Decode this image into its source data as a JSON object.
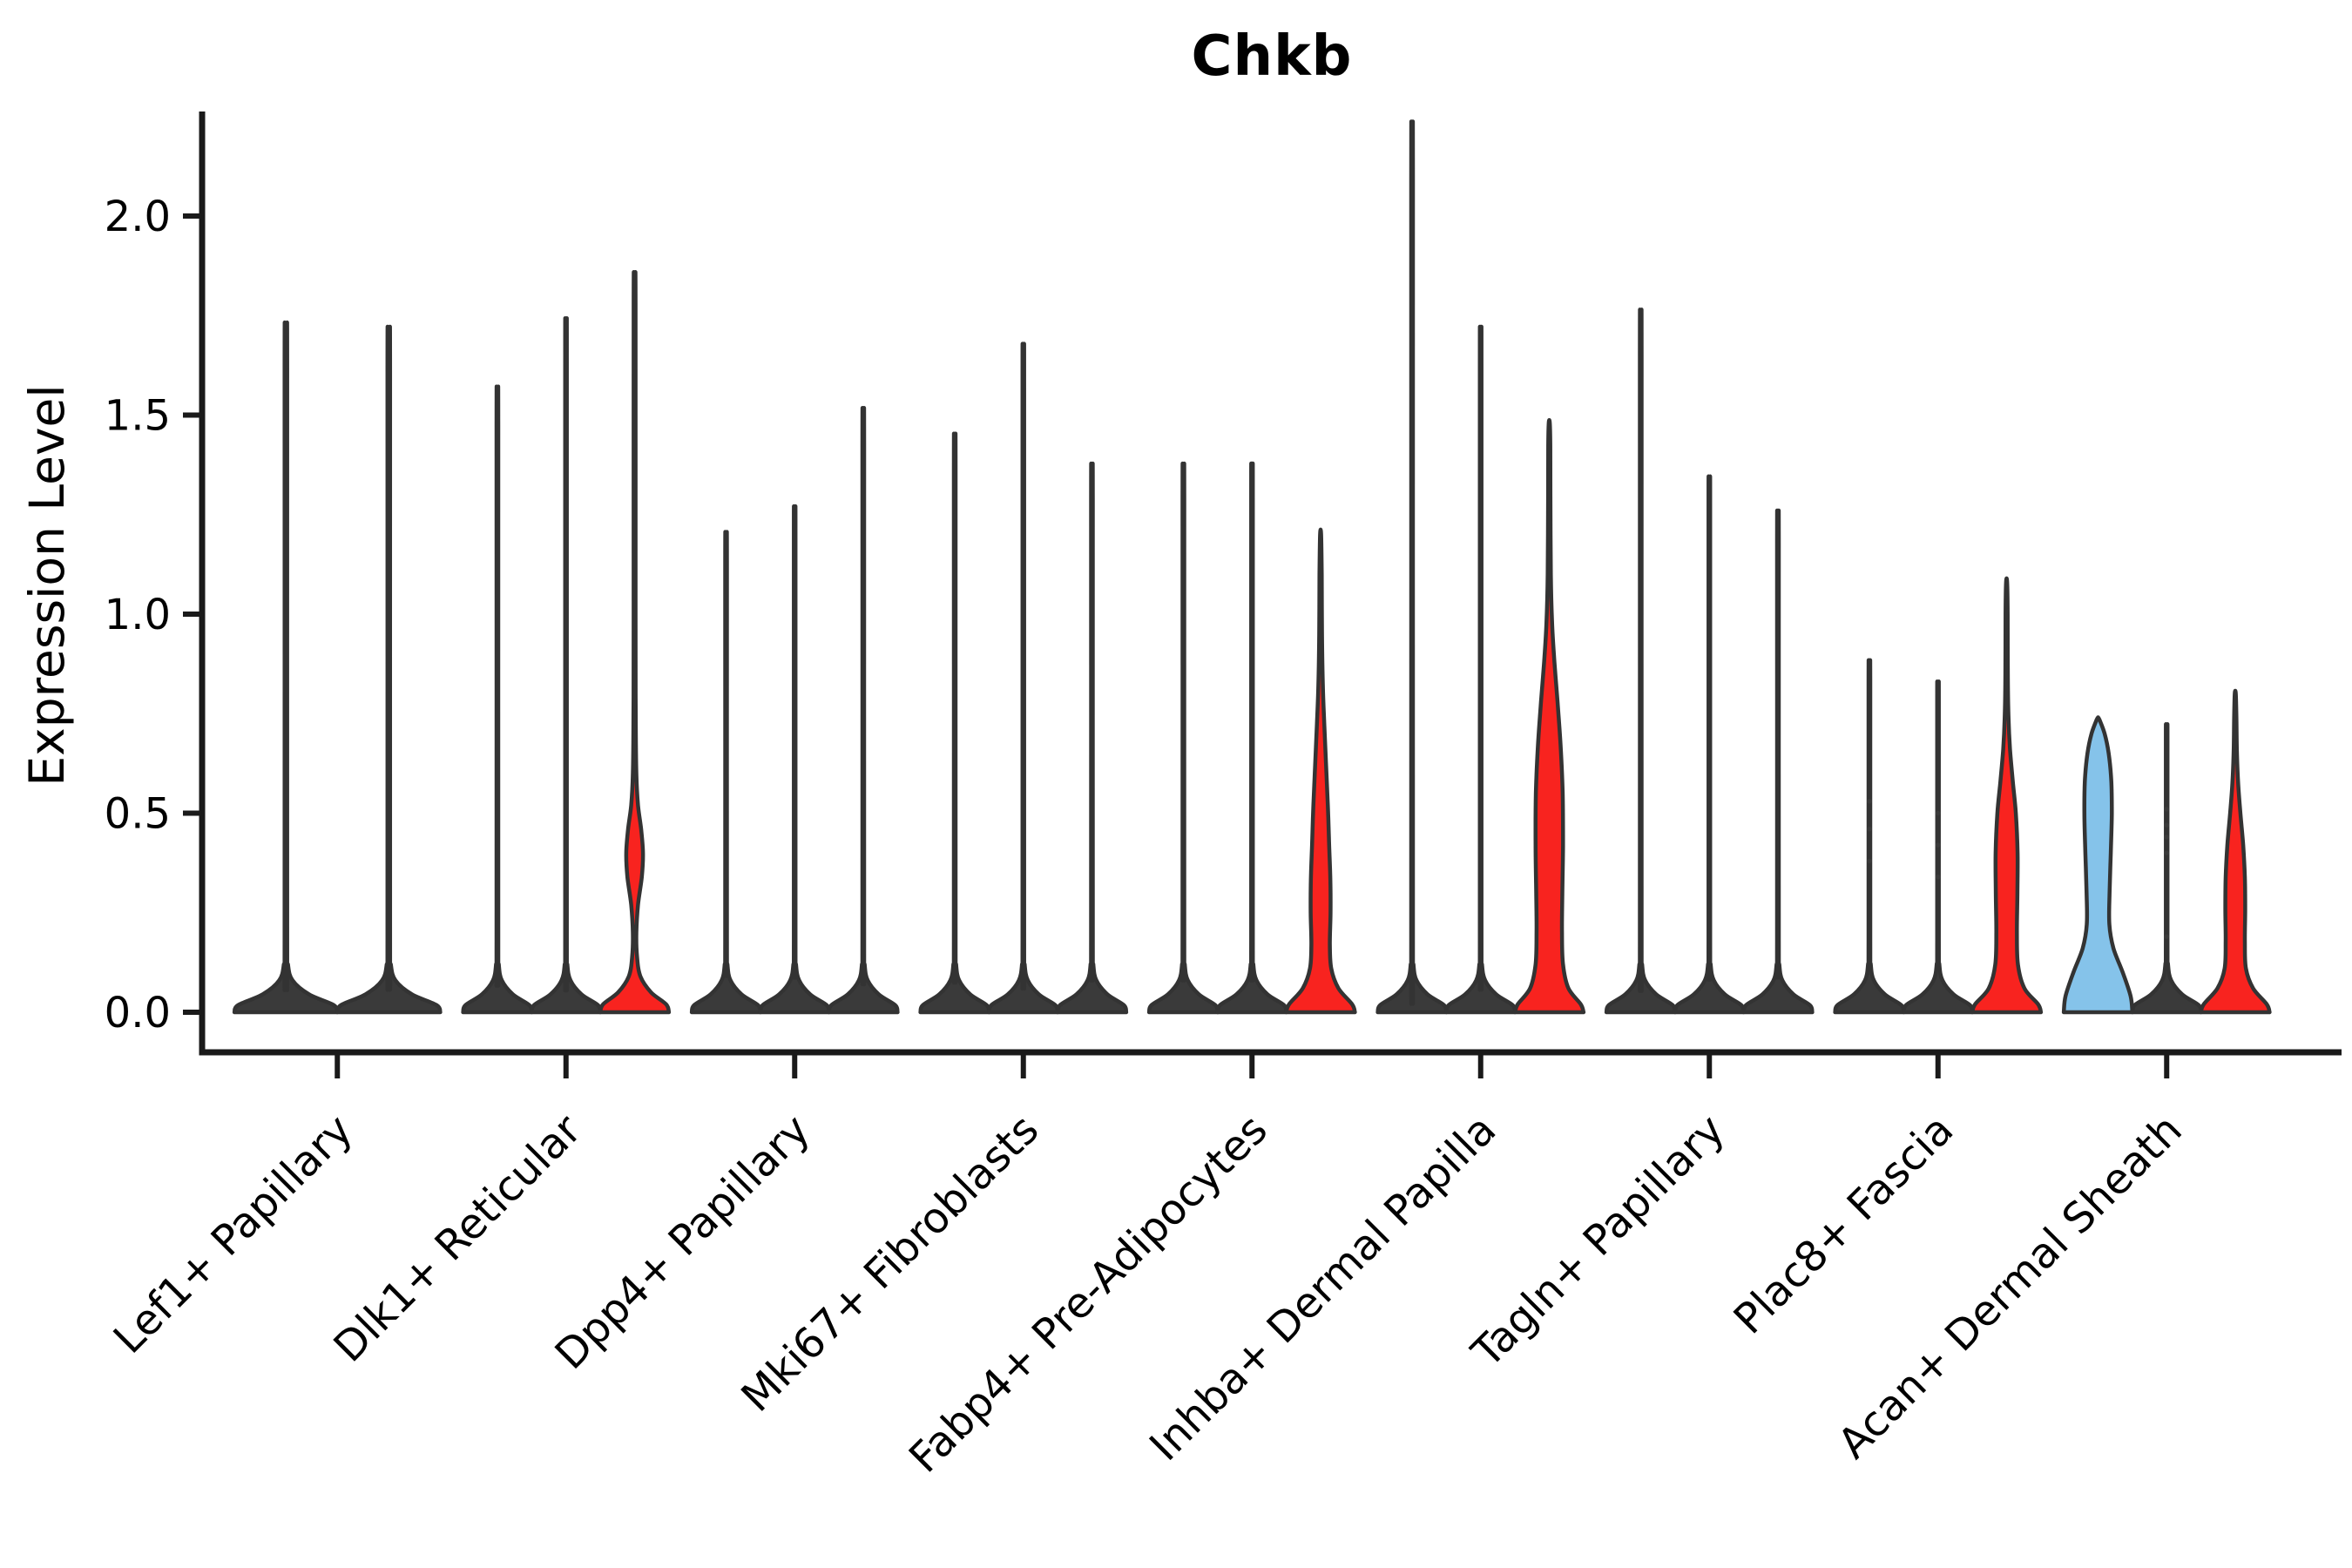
{
  "title": "Chkb",
  "y_axis_title": "Expression Level",
  "chart_data": {
    "type": "violin",
    "title": "Chkb",
    "xlabel": "",
    "ylabel": "Expression Level",
    "ylim": [
      0,
      2.26
    ],
    "grid": false,
    "legend": "none",
    "x_tick_rotation_deg": 45,
    "yticks": [
      {
        "value": 0.0,
        "label": "0.0"
      },
      {
        "value": 0.5,
        "label": "0.5"
      },
      {
        "value": 1.0,
        "label": "1.0"
      },
      {
        "value": 1.5,
        "label": "1.5"
      },
      {
        "value": 2.0,
        "label": "2.0"
      }
    ],
    "colors": {
      "red": "#F8231F",
      "blue": "#85C3EA",
      "dark": "#3A3A3A",
      "outline": "#333333",
      "axis": "#1A1A1A",
      "text": "#000000"
    },
    "categories": [
      "Lef1+ Papillary",
      "Dlk1+ Reticular",
      "Dpp4+ Papillary",
      "Mki67+ Fibroblasts",
      "Fabp4+ Pre-Adipocytes",
      "Inhba+ Dermal Papilla",
      "Tagln+ Papillary",
      "Plac8+ Fascia",
      "Acan+ Dermal Sheath"
    ],
    "groups": [
      {
        "violins": [
          {
            "max": 1.64,
            "color": "dark",
            "shape": "spike"
          },
          {
            "max": 1.63,
            "color": "dark",
            "shape": "spike"
          }
        ]
      },
      {
        "violins": [
          {
            "max": 1.49,
            "color": "dark",
            "shape": "spike"
          },
          {
            "max": 1.65,
            "color": "dark",
            "shape": "spike"
          },
          {
            "max": 1.84,
            "color": "red",
            "shape": "profile",
            "profile": [
              [
                0,
                1
              ],
              [
                0.02,
                0.92
              ],
              [
                0.05,
                0.48
              ],
              [
                0.09,
                0.17
              ],
              [
                0.14,
                0.07
              ],
              [
                0.2,
                0.05
              ],
              [
                0.27,
                0.1
              ],
              [
                0.34,
                0.21
              ],
              [
                0.4,
                0.245
              ],
              [
                0.46,
                0.19
              ],
              [
                0.52,
                0.1
              ],
              [
                0.6,
                0.05
              ],
              [
                0.75,
                0.032
              ],
              [
                1.0,
                0.028
              ],
              [
                1.78,
                0.028
              ],
              [
                1.84,
                0.015
              ]
            ]
          }
        ]
      },
      {
        "violins": [
          {
            "max": 1.15,
            "color": "dark",
            "shape": "spike"
          },
          {
            "max": 1.21,
            "color": "dark",
            "shape": "spike"
          },
          {
            "max": 1.44,
            "color": "dark",
            "shape": "spike"
          }
        ]
      },
      {
        "violins": [
          {
            "max": 1.38,
            "color": "dark",
            "shape": "spike"
          },
          {
            "max": 1.59,
            "color": "dark",
            "shape": "spike"
          },
          {
            "max": 1.31,
            "color": "dark",
            "shape": "spike"
          }
        ]
      },
      {
        "violins": [
          {
            "max": 1.31,
            "color": "dark",
            "shape": "spike"
          },
          {
            "max": 1.31,
            "color": "dark",
            "shape": "spike"
          },
          {
            "max": 1.2,
            "color": "red",
            "shape": "profile",
            "profile": [
              [
                0,
                1
              ],
              [
                0.02,
                0.92
              ],
              [
                0.06,
                0.52
              ],
              [
                0.11,
                0.31
              ],
              [
                0.17,
                0.27
              ],
              [
                0.25,
                0.29
              ],
              [
                0.33,
                0.285
              ],
              [
                0.42,
                0.25
              ],
              [
                0.52,
                0.21
              ],
              [
                0.62,
                0.16
              ],
              [
                0.72,
                0.11
              ],
              [
                0.82,
                0.065
              ],
              [
                0.95,
                0.04
              ],
              [
                1.1,
                0.032
              ],
              [
                1.2,
                0.015
              ]
            ]
          }
        ]
      },
      {
        "violins": [
          {
            "max": 2.11,
            "color": "dark",
            "shape": "spike"
          },
          {
            "max": 1.63,
            "color": "dark",
            "shape": "spike"
          },
          {
            "max": 1.48,
            "color": "red",
            "shape": "profile",
            "profile": [
              [
                0,
                1
              ],
              [
                0.02,
                0.92
              ],
              [
                0.06,
                0.56
              ],
              [
                0.12,
                0.4
              ],
              [
                0.2,
                0.37
              ],
              [
                0.3,
                0.38
              ],
              [
                0.42,
                0.4
              ],
              [
                0.55,
                0.39
              ],
              [
                0.67,
                0.33
              ],
              [
                0.78,
                0.24
              ],
              [
                0.88,
                0.15
              ],
              [
                0.98,
                0.08
              ],
              [
                1.1,
                0.045
              ],
              [
                1.3,
                0.032
              ],
              [
                1.42,
                0.03
              ],
              [
                1.48,
                0.015
              ]
            ]
          }
        ]
      },
      {
        "violins": [
          {
            "max": 1.67,
            "color": "dark",
            "shape": "spike"
          },
          {
            "max": 1.28,
            "color": "dark",
            "shape": "spike"
          },
          {
            "max": 1.2,
            "color": "dark",
            "shape": "spike"
          }
        ]
      },
      {
        "violins": [
          {
            "max": 0.85,
            "color": "dark",
            "shape": "spike",
            "points": [
              0.38,
              0.46,
              0.53
            ]
          },
          {
            "max": 0.8,
            "color": "dark",
            "shape": "spike",
            "points": [
              0.34,
              0.42,
              0.5
            ]
          },
          {
            "max": 1.08,
            "color": "red",
            "shape": "profile",
            "profile": [
              [
                0,
                1
              ],
              [
                0.02,
                0.92
              ],
              [
                0.06,
                0.52
              ],
              [
                0.12,
                0.33
              ],
              [
                0.2,
                0.3
              ],
              [
                0.3,
                0.315
              ],
              [
                0.4,
                0.32
              ],
              [
                0.5,
                0.27
              ],
              [
                0.58,
                0.18
              ],
              [
                0.66,
                0.1
              ],
              [
                0.74,
                0.055
              ],
              [
                0.85,
                0.035
              ],
              [
                1.0,
                0.03
              ],
              [
                1.08,
                0.015
              ]
            ]
          }
        ]
      },
      {
        "violins": [
          {
            "max": 0.74,
            "color": "blue",
            "shape": "profile",
            "profile": [
              [
                0,
                1
              ],
              [
                0.04,
                0.95
              ],
              [
                0.1,
                0.72
              ],
              [
                0.16,
                0.45
              ],
              [
                0.22,
                0.33
              ],
              [
                0.3,
                0.335
              ],
              [
                0.4,
                0.37
              ],
              [
                0.5,
                0.4
              ],
              [
                0.58,
                0.385
              ],
              [
                0.65,
                0.31
              ],
              [
                0.7,
                0.19
              ],
              [
                0.735,
                0.04
              ],
              [
                0.74,
                0
              ]
            ]
          },
          {
            "max": 0.7,
            "color": "dark",
            "shape": "spike",
            "points": [
              0.19,
              0.4,
              0.44,
              0.47,
              0.51
            ]
          },
          {
            "max": 0.8,
            "color": "red",
            "shape": "profile",
            "profile": [
              [
                0,
                1
              ],
              [
                0.02,
                0.92
              ],
              [
                0.06,
                0.52
              ],
              [
                0.11,
                0.31
              ],
              [
                0.18,
                0.28
              ],
              [
                0.26,
                0.29
              ],
              [
                0.34,
                0.28
              ],
              [
                0.42,
                0.23
              ],
              [
                0.5,
                0.15
              ],
              [
                0.58,
                0.08
              ],
              [
                0.66,
                0.045
              ],
              [
                0.74,
                0.032
              ],
              [
                0.8,
                0.015
              ]
            ]
          }
        ]
      }
    ]
  }
}
